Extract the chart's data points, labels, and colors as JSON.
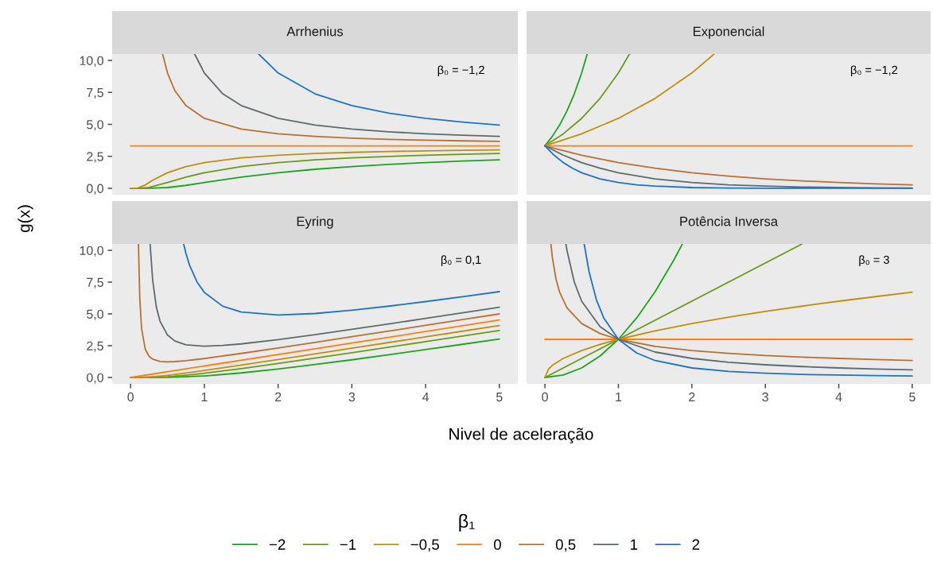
{
  "chart_data": [
    {
      "type": "line",
      "title": "Arrhenius",
      "ylabel": "g(x)",
      "legend": "bottom",
      "legend_title": "β₁",
      "annotations": [
        "β₀ = −1,2"
      ],
      "xlim": [
        -0.25,
        5.25
      ],
      "ylim": [
        -0.5,
        10.5
      ],
      "yticks": [
        {
          "value": 0,
          "label": "0,0"
        },
        {
          "value": 2.5,
          "label": "2,5"
        },
        {
          "value": 5,
          "label": "5,0"
        },
        {
          "value": 7.5,
          "label": "7,5"
        },
        {
          "value": 10,
          "label": "10,0"
        }
      ],
      "tick_labels": "y",
      "grid": false,
      "series": [
        {
          "name": "−2",
          "color": "#1fa31f",
          "x": [
            0,
            0.25,
            0.5,
            0.75,
            1,
            1.5,
            2,
            2.5,
            3,
            3.5,
            4,
            4.5,
            5
          ],
          "values": [
            0,
            0.0,
            0.06,
            0.23,
            0.45,
            0.88,
            1.22,
            1.49,
            1.7,
            1.87,
            2.01,
            2.13,
            2.23
          ]
        },
        {
          "name": "−1",
          "color": "#6a9a1d",
          "x": [
            0,
            0.1,
            0.25,
            0.5,
            0.75,
            1,
            1.5,
            2,
            2.5,
            3,
            3.5,
            4,
            4.5,
            5
          ],
          "values": [
            0,
            0.0,
            0.06,
            0.45,
            0.88,
            1.22,
            1.7,
            2.01,
            2.23,
            2.38,
            2.49,
            2.59,
            2.66,
            2.72
          ]
        },
        {
          "name": "−0,5",
          "color": "#bf8f10",
          "x": [
            0,
            0.1,
            0.2,
            0.3,
            0.5,
            0.75,
            1,
            1.5,
            2,
            2.5,
            3,
            3.5,
            4,
            4.5,
            5
          ],
          "values": [
            0,
            0.02,
            0.27,
            0.63,
            1.22,
            1.7,
            2.01,
            2.38,
            2.59,
            2.72,
            2.81,
            2.88,
            2.93,
            2.97,
            3.0
          ]
        },
        {
          "name": "0",
          "color": "#ff7f0e",
          "x": [
            0,
            5
          ],
          "values": [
            3.32,
            3.32
          ]
        },
        {
          "name": "0,5",
          "color": "#b77134",
          "x": [
            0.434,
            0.5,
            0.6,
            0.75,
            1,
            1.5,
            2,
            2.5,
            3,
            3.5,
            4,
            4.5,
            5
          ],
          "values": [
            10.5,
            9.02,
            7.64,
            6.47,
            5.47,
            4.63,
            4.26,
            4.06,
            3.92,
            3.83,
            3.76,
            3.71,
            3.67
          ]
        },
        {
          "name": "1",
          "color": "#5e6b6e",
          "x": [
            0.8685,
            1,
            1.25,
            1.5,
            2,
            2.5,
            3,
            3.5,
            4,
            4.5,
            5
          ],
          "values": [
            10.5,
            9.02,
            7.39,
            6.47,
            5.47,
            4.95,
            4.63,
            4.42,
            4.26,
            4.15,
            4.06
          ]
        },
        {
          "name": "2",
          "color": "#1f73c4",
          "x": [
            1.737,
            2,
            2.5,
            3,
            3.5,
            4,
            4.5,
            5
          ],
          "values": [
            10.5,
            9.02,
            7.39,
            6.47,
            5.88,
            5.47,
            5.18,
            4.95
          ]
        }
      ]
    },
    {
      "type": "line",
      "title": "Exponencial",
      "annotations": [
        "β₀ = −1,2"
      ],
      "xlim": [
        -0.25,
        5.25
      ],
      "ylim": [
        -0.5,
        10.5
      ],
      "tick_labels": false,
      "grid": false,
      "series": [
        {
          "color": "#1fa31f",
          "x": [
            0,
            0.1,
            0.2,
            0.3,
            0.4,
            0.5,
            0.5757
          ],
          "values": [
            3.32,
            4.06,
            4.95,
            6.05,
            7.39,
            9.02,
            10.5
          ]
        },
        {
          "color": "#6a9a1d",
          "x": [
            0,
            0.25,
            0.5,
            0.75,
            1,
            1.1514
          ],
          "values": [
            3.32,
            4.26,
            5.47,
            7.03,
            9.02,
            10.5
          ]
        },
        {
          "color": "#bf8f10",
          "x": [
            0,
            0.5,
            1,
            1.5,
            2,
            2.3028
          ],
          "values": [
            3.32,
            4.26,
            5.47,
            7.03,
            9.02,
            10.5
          ]
        },
        {
          "color": "#ff7f0e",
          "x": [
            0,
            5
          ],
          "values": [
            3.32,
            3.32
          ]
        },
        {
          "color": "#b77134",
          "x": [
            0,
            0.5,
            1,
            1.5,
            2,
            2.5,
            3,
            3.5,
            4,
            4.5,
            5
          ],
          "values": [
            3.32,
            2.59,
            2.01,
            1.57,
            1.22,
            0.95,
            0.74,
            0.58,
            0.45,
            0.35,
            0.27
          ]
        },
        {
          "color": "#5e6b6e",
          "x": [
            0,
            0.25,
            0.5,
            0.75,
            1,
            1.5,
            2,
            2.5,
            3,
            3.5,
            4,
            4.5,
            5
          ],
          "values": [
            3.32,
            2.59,
            2.01,
            1.57,
            1.22,
            0.74,
            0.45,
            0.27,
            0.17,
            0.1,
            0.06,
            0.04,
            0.02
          ]
        },
        {
          "color": "#1f73c4",
          "x": [
            0,
            0.125,
            0.25,
            0.375,
            0.5,
            0.75,
            1,
            1.25,
            1.5,
            2,
            2.5,
            3,
            4,
            5
          ],
          "values": [
            3.32,
            2.59,
            2.01,
            1.57,
            1.22,
            0.74,
            0.45,
            0.27,
            0.17,
            0.06,
            0.02,
            0.01,
            0.0,
            0.0
          ]
        }
      ]
    },
    {
      "type": "line",
      "title": "Eyring",
      "xlabel": "Nivel de aceleração",
      "annotations": [
        "β₀ = 0,1"
      ],
      "xlim": [
        -0.25,
        5.25
      ],
      "ylim": [
        -0.5,
        10.5
      ],
      "xticks": [
        0,
        1,
        2,
        3,
        4,
        5
      ],
      "yticks": [
        {
          "value": 0,
          "label": "0,0"
        },
        {
          "value": 2.5,
          "label": "2,5"
        },
        {
          "value": 5,
          "label": "5,0"
        },
        {
          "value": 7.5,
          "label": "7,5"
        },
        {
          "value": 10,
          "label": "10,0"
        }
      ],
      "grid": false,
      "series": [
        {
          "color": "#1fa31f",
          "x": [
            0,
            0.5,
            1,
            1.5,
            2,
            2.5,
            3,
            3.5,
            4,
            4.5,
            5
          ],
          "values": [
            0,
            0.01,
            0.12,
            0.36,
            0.67,
            1.02,
            1.39,
            1.79,
            2.2,
            2.61,
            3.03
          ]
        },
        {
          "color": "#6a9a1d",
          "x": [
            0,
            0.5,
            0.75,
            1,
            1.5,
            2,
            2.5,
            3,
            3.5,
            4,
            4.5,
            5
          ],
          "values": [
            0,
            0.06,
            0.18,
            0.33,
            0.7,
            1.1,
            1.52,
            1.94,
            2.38,
            2.82,
            3.26,
            3.7
          ]
        },
        {
          "color": "#bf8f10",
          "x": [
            0,
            0.2,
            0.3,
            0.5,
            0.75,
            1,
            1.5,
            2,
            2.5,
            3,
            3.5,
            4,
            4.5,
            5
          ],
          "values": [
            0,
            0.01,
            0.05,
            0.17,
            0.35,
            0.55,
            0.97,
            1.41,
            1.85,
            2.3,
            2.75,
            3.19,
            3.64,
            4.09
          ]
        },
        {
          "color": "#ff7f0e",
          "x": [
            0,
            5
          ],
          "values": [
            0,
            4.52
          ]
        },
        {
          "color": "#b77134",
          "x": [
            0.1065,
            0.125,
            0.15,
            0.2,
            0.25,
            0.3,
            0.4,
            0.5,
            0.6,
            0.75,
            1,
            1.5,
            2,
            2.5,
            3,
            3.5,
            4,
            4.5,
            5
          ],
          "values": [
            10.5,
            6.18,
            3.8,
            2.2,
            1.67,
            1.44,
            1.26,
            1.23,
            1.25,
            1.32,
            1.49,
            1.89,
            2.32,
            2.76,
            3.21,
            3.65,
            4.1,
            4.55,
            5.0
          ]
        },
        {
          "color": "#5e6b6e",
          "x": [
            0.2645,
            0.3,
            0.35,
            0.4,
            0.5,
            0.6,
            0.75,
            1,
            1.25,
            1.5,
            2,
            2.5,
            3,
            3.5,
            4,
            4.5,
            5
          ],
          "values": [
            10.5,
            7.61,
            5.51,
            4.41,
            3.34,
            2.87,
            2.57,
            2.46,
            2.52,
            2.64,
            2.98,
            3.37,
            3.79,
            4.21,
            4.65,
            5.08,
            5.53
          ]
        },
        {
          "color": "#1f73c4",
          "x": [
            0.7195,
            0.75,
            0.8,
            0.9,
            1,
            1.25,
            1.5,
            2,
            2.5,
            3,
            3.5,
            4,
            4.5,
            5
          ],
          "values": [
            10.5,
            9.77,
            8.82,
            7.52,
            6.69,
            5.6,
            5.15,
            4.92,
            5.03,
            5.29,
            5.61,
            5.97,
            6.35,
            6.75
          ]
        }
      ]
    },
    {
      "type": "line",
      "title": "Potência Inversa",
      "annotations": [
        "β₀ = 3"
      ],
      "xlim": [
        -0.25,
        5.25
      ],
      "ylim": [
        -0.5,
        10.5
      ],
      "xticks": [
        0,
        1,
        2,
        3,
        4,
        5
      ],
      "tick_labels": "x",
      "grid": false,
      "series": [
        {
          "color": "#1fa31f",
          "x": [
            0,
            0.25,
            0.5,
            0.75,
            1,
            1.25,
            1.5,
            1.75,
            1.8708
          ],
          "values": [
            0,
            0.19,
            0.75,
            1.69,
            3,
            4.69,
            6.75,
            9.19,
            10.5
          ]
        },
        {
          "color": "#6a9a1d",
          "x": [
            0,
            3.5
          ],
          "values": [
            0,
            10.5
          ]
        },
        {
          "color": "#bf8f10",
          "x": [
            0,
            0.05,
            0.1,
            0.25,
            0.5,
            0.75,
            1,
            1.5,
            2,
            2.5,
            3,
            3.5,
            4,
            4.5,
            5
          ],
          "values": [
            0,
            0.67,
            0.95,
            1.5,
            2.12,
            2.6,
            3,
            3.67,
            4.24,
            4.74,
            5.2,
            5.61,
            6,
            6.36,
            6.71
          ]
        },
        {
          "color": "#ff7f0e",
          "x": [
            0,
            5
          ],
          "values": [
            3,
            3
          ]
        },
        {
          "color": "#b77134",
          "x": [
            0.0816,
            0.1,
            0.15,
            0.2,
            0.3,
            0.5,
            0.75,
            1,
            1.5,
            2,
            2.5,
            3,
            3.5,
            4,
            4.5,
            5
          ],
          "values": [
            10.5,
            9.49,
            7.75,
            6.71,
            5.48,
            4.24,
            3.46,
            3,
            2.45,
            2.12,
            1.9,
            1.73,
            1.6,
            1.5,
            1.41,
            1.34
          ]
        },
        {
          "color": "#5e6b6e",
          "x": [
            0.2857,
            0.3,
            0.4,
            0.5,
            0.75,
            1,
            1.5,
            2,
            2.5,
            3,
            3.5,
            4,
            4.5,
            5
          ],
          "values": [
            10.5,
            10,
            7.5,
            6,
            4,
            3,
            2,
            1.5,
            1.2,
            1,
            0.86,
            0.75,
            0.67,
            0.6
          ]
        },
        {
          "color": "#1f73c4",
          "x": [
            0.5345,
            0.6,
            0.7,
            0.8,
            1,
            1.25,
            1.5,
            2,
            2.5,
            3,
            3.5,
            4,
            4.5,
            5
          ],
          "values": [
            10.5,
            8.33,
            6.12,
            4.69,
            3,
            1.92,
            1.33,
            0.75,
            0.48,
            0.33,
            0.24,
            0.19,
            0.15,
            0.12
          ]
        }
      ]
    }
  ]
}
